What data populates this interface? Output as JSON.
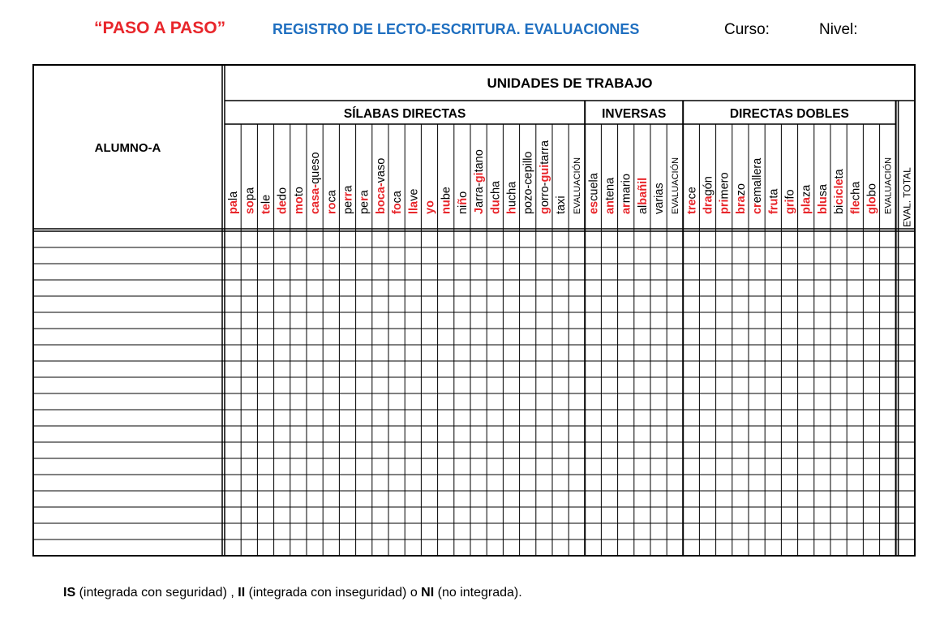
{
  "header": {
    "program": "“PASO A PASO”",
    "title": "REGISTRO DE LECTO-ESCRITURA. EVALUACIONES",
    "curso_label": "Curso:",
    "nivel_label": "Nivel:"
  },
  "table": {
    "student_header": "ALUMNO-A",
    "units_header": "UNIDADES DE TRABAJO",
    "groups": [
      {
        "name": "SÍLABAS  DIRECTAS",
        "words": [
          [
            [
              "pa",
              "r"
            ],
            [
              "la",
              "k"
            ]
          ],
          [
            [
              "so",
              "r"
            ],
            [
              "pa",
              "k"
            ]
          ],
          [
            [
              "te",
              "r"
            ],
            [
              "le",
              "k"
            ]
          ],
          [
            [
              "de",
              "r"
            ],
            [
              "do",
              "k"
            ]
          ],
          [
            [
              "mo",
              "r"
            ],
            [
              "to",
              "k"
            ]
          ],
          [
            [
              "casa-",
              "r"
            ],
            [
              "queso",
              "k"
            ]
          ],
          [
            [
              "ro",
              "r"
            ],
            [
              "ca",
              "k"
            ]
          ],
          [
            [
              "pe",
              "k"
            ],
            [
              "rr",
              "r"
            ],
            [
              "a",
              "k"
            ]
          ],
          [
            [
              "pe",
              "k"
            ],
            [
              "r",
              "r"
            ],
            [
              "a",
              "k"
            ]
          ],
          [
            [
              "boca-",
              "r"
            ],
            [
              "vaso",
              "k"
            ]
          ],
          [
            [
              "fo",
              "r"
            ],
            [
              "ca",
              "k"
            ]
          ],
          [
            [
              "lla",
              "r"
            ],
            [
              "ve",
              "k"
            ]
          ],
          [
            [
              "yo",
              "r"
            ]
          ],
          [
            [
              "nu",
              "r"
            ],
            [
              "be",
              "k"
            ]
          ],
          [
            [
              "ni",
              "k"
            ],
            [
              "ñ",
              "r"
            ],
            [
              "o",
              "k"
            ]
          ],
          [
            [
              "J",
              "r"
            ],
            [
              "arra-",
              "k"
            ],
            [
              "gi",
              "r"
            ],
            [
              "tano",
              "k"
            ]
          ],
          [
            [
              "du",
              "r"
            ],
            [
              "cha",
              "k"
            ]
          ],
          [
            [
              "h",
              "r"
            ],
            [
              "ucha",
              "k"
            ]
          ],
          [
            [
              "pozo-cepillo",
              "k"
            ]
          ],
          [
            [
              "g",
              "r"
            ],
            [
              "orro-",
              "k"
            ],
            [
              "gui",
              "r"
            ],
            [
              "tarra",
              "k"
            ]
          ],
          [
            [
              "taxi",
              "k"
            ]
          ]
        ],
        "eval_label": "EVALUACIÓN"
      },
      {
        "name": "INVERSAS",
        "words": [
          [
            [
              "es",
              "r"
            ],
            [
              "cuela",
              "k"
            ]
          ],
          [
            [
              "an",
              "r"
            ],
            [
              "tena",
              "k"
            ]
          ],
          [
            [
              "ar",
              "r"
            ],
            [
              "mario",
              "k"
            ]
          ],
          [
            [
              "al",
              "k"
            ],
            [
              "bañil",
              "r"
            ]
          ],
          [
            [
              "varias",
              "k"
            ]
          ]
        ],
        "eval_label": "EVALUACIÓN"
      },
      {
        "name": "DIRECTAS  DOBLES",
        "words": [
          [
            [
              "tre",
              "r"
            ],
            [
              "ce",
              "k"
            ]
          ],
          [
            [
              "dra",
              "r"
            ],
            [
              "gón",
              "k"
            ]
          ],
          [
            [
              "pri",
              "r"
            ],
            [
              "mero",
              "k"
            ]
          ],
          [
            [
              "bra",
              "r"
            ],
            [
              "zo",
              "k"
            ]
          ],
          [
            [
              "cr",
              "r"
            ],
            [
              "emallera",
              "k"
            ]
          ],
          [
            [
              "fru",
              "r"
            ],
            [
              "ta",
              "k"
            ]
          ],
          [
            [
              "gri",
              "r"
            ],
            [
              "fo",
              "k"
            ]
          ],
          [
            [
              "pla",
              "r"
            ],
            [
              "za",
              "k"
            ]
          ],
          [
            [
              "blu",
              "r"
            ],
            [
              "sa",
              "k"
            ]
          ],
          [
            [
              "bi",
              "k"
            ],
            [
              "cicle",
              "r"
            ],
            [
              "ta",
              "k"
            ]
          ],
          [
            [
              "fle",
              "r"
            ],
            [
              "cha",
              "k"
            ]
          ],
          [
            [
              "glo",
              "r"
            ],
            [
              "bo",
              "k"
            ]
          ]
        ],
        "eval_label": "EVALUACIÓN"
      }
    ],
    "total_label": "EVAL. TOTAL",
    "blank_rows": 20
  },
  "legend": {
    "is_abbr": "IS",
    "is_text": " (integrada con seguridad) ,  ",
    "ii_abbr": "II",
    "ii_text": " (integrada con inseguridad)  o ",
    "ni_abbr": "NI",
    "ni_text": " (no  integrada)."
  },
  "colors": {
    "red": "#e8262b",
    "blue": "#1f6fc0",
    "black": "#000000"
  }
}
